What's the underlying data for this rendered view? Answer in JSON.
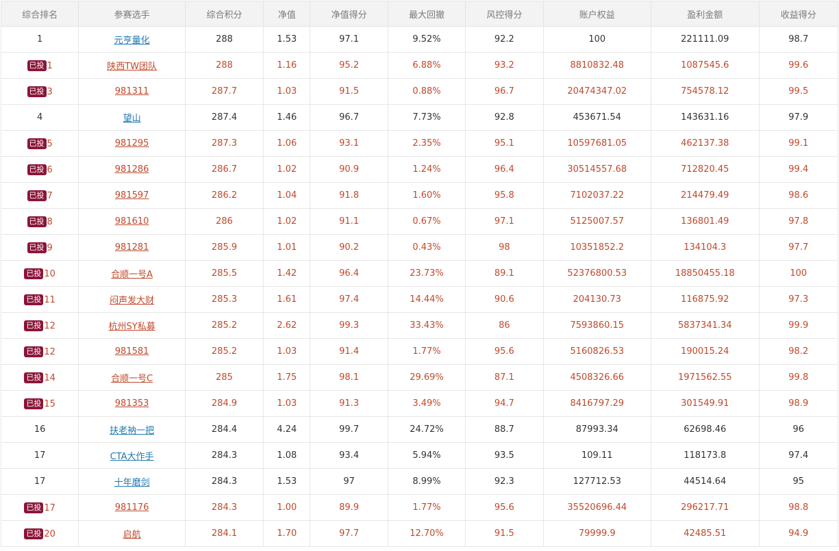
{
  "columns": [
    "综合排名",
    "参赛选手",
    "综合积分",
    "净值",
    "净值得分",
    "最大回撤",
    "风控得分",
    "账户权益",
    "盈利金额",
    "收益得分"
  ],
  "badge_label": "已投",
  "colors": {
    "invested_text": "#c0492b",
    "link_blue": "#1f79b0",
    "badge_bg": "#8b1538",
    "header_bg": "#f3f3f3"
  },
  "rows": [
    {
      "invested": false,
      "rank": "1",
      "name": "元亨量化",
      "score": "288",
      "nav": "1.53",
      "nav_score": "97.1",
      "max_dd": "9.52%",
      "risk_score": "92.2",
      "equity": "100",
      "profit": "221111.09",
      "return_score": "98.7"
    },
    {
      "invested": true,
      "rank": "1",
      "name": "陕西TW团队",
      "score": "288",
      "nav": "1.16",
      "nav_score": "95.2",
      "max_dd": "6.88%",
      "risk_score": "93.2",
      "equity": "8810832.48",
      "profit": "1087545.6",
      "return_score": "99.6"
    },
    {
      "invested": true,
      "rank": "3",
      "name": "981311",
      "score": "287.7",
      "nav": "1.03",
      "nav_score": "91.5",
      "max_dd": "0.88%",
      "risk_score": "96.7",
      "equity": "20474347.02",
      "profit": "754578.12",
      "return_score": "99.5"
    },
    {
      "invested": false,
      "rank": "4",
      "name": "望山",
      "score": "287.4",
      "nav": "1.46",
      "nav_score": "96.7",
      "max_dd": "7.73%",
      "risk_score": "92.8",
      "equity": "453671.54",
      "profit": "143631.16",
      "return_score": "97.9"
    },
    {
      "invested": true,
      "rank": "5",
      "name": "981295",
      "score": "287.3",
      "nav": "1.06",
      "nav_score": "93.1",
      "max_dd": "2.35%",
      "risk_score": "95.1",
      "equity": "10597681.05",
      "profit": "462137.38",
      "return_score": "99.1"
    },
    {
      "invested": true,
      "rank": "6",
      "name": "981286",
      "score": "286.7",
      "nav": "1.02",
      "nav_score": "90.9",
      "max_dd": "1.24%",
      "risk_score": "96.4",
      "equity": "30514557.68",
      "profit": "712820.45",
      "return_score": "99.4"
    },
    {
      "invested": true,
      "rank": "7",
      "name": "981597",
      "score": "286.2",
      "nav": "1.04",
      "nav_score": "91.8",
      "max_dd": "1.60%",
      "risk_score": "95.8",
      "equity": "7102037.22",
      "profit": "214479.49",
      "return_score": "98.6"
    },
    {
      "invested": true,
      "rank": "8",
      "name": "981610",
      "score": "286",
      "nav": "1.02",
      "nav_score": "91.1",
      "max_dd": "0.67%",
      "risk_score": "97.1",
      "equity": "5125007.57",
      "profit": "136801.49",
      "return_score": "97.8"
    },
    {
      "invested": true,
      "rank": "9",
      "name": "981281",
      "score": "285.9",
      "nav": "1.01",
      "nav_score": "90.2",
      "max_dd": "0.43%",
      "risk_score": "98",
      "equity": "10351852.2",
      "profit": "134104.3",
      "return_score": "97.7"
    },
    {
      "invested": true,
      "rank": "10",
      "name": "合顺一号A",
      "score": "285.5",
      "nav": "1.42",
      "nav_score": "96.4",
      "max_dd": "23.73%",
      "risk_score": "89.1",
      "equity": "52376800.53",
      "profit": "18850455.18",
      "return_score": "100"
    },
    {
      "invested": true,
      "rank": "11",
      "name": "闷声发大财",
      "score": "285.3",
      "nav": "1.61",
      "nav_score": "97.4",
      "max_dd": "14.44%",
      "risk_score": "90.6",
      "equity": "204130.73",
      "profit": "116875.92",
      "return_score": "97.3"
    },
    {
      "invested": true,
      "rank": "12",
      "name": "杭州SY私募",
      "score": "285.2",
      "nav": "2.62",
      "nav_score": "99.3",
      "max_dd": "33.43%",
      "risk_score": "86",
      "equity": "7593860.15",
      "profit": "5837341.34",
      "return_score": "99.9"
    },
    {
      "invested": true,
      "rank": "12",
      "name": "981581",
      "score": "285.2",
      "nav": "1.03",
      "nav_score": "91.4",
      "max_dd": "1.77%",
      "risk_score": "95.6",
      "equity": "5160826.53",
      "profit": "190015.24",
      "return_score": "98.2"
    },
    {
      "invested": true,
      "rank": "14",
      "name": "合顺一号C",
      "score": "285",
      "nav": "1.75",
      "nav_score": "98.1",
      "max_dd": "29.69%",
      "risk_score": "87.1",
      "equity": "4508326.66",
      "profit": "1971562.55",
      "return_score": "99.8"
    },
    {
      "invested": true,
      "rank": "15",
      "name": "981353",
      "score": "284.9",
      "nav": "1.03",
      "nav_score": "91.3",
      "max_dd": "3.49%",
      "risk_score": "94.7",
      "equity": "8416797.29",
      "profit": "301549.91",
      "return_score": "98.9"
    },
    {
      "invested": false,
      "rank": "16",
      "name": "扶老衲一把",
      "score": "284.4",
      "nav": "4.24",
      "nav_score": "99.7",
      "max_dd": "24.72%",
      "risk_score": "88.7",
      "equity": "87993.34",
      "profit": "62698.46",
      "return_score": "96"
    },
    {
      "invested": false,
      "rank": "17",
      "name": "CTA大作手",
      "score": "284.3",
      "nav": "1.08",
      "nav_score": "93.4",
      "max_dd": "5.94%",
      "risk_score": "93.5",
      "equity": "109.11",
      "profit": "118173.8",
      "return_score": "97.4"
    },
    {
      "invested": false,
      "rank": "17",
      "name": "十年磨剑",
      "score": "284.3",
      "nav": "1.53",
      "nav_score": "97",
      "max_dd": "8.99%",
      "risk_score": "92.3",
      "equity": "127712.53",
      "profit": "44514.64",
      "return_score": "95"
    },
    {
      "invested": true,
      "rank": "17",
      "name": "981176",
      "score": "284.3",
      "nav": "1.00",
      "nav_score": "89.9",
      "max_dd": "1.77%",
      "risk_score": "95.6",
      "equity": "35520696.44",
      "profit": "296217.71",
      "return_score": "98.8"
    },
    {
      "invested": true,
      "rank": "20",
      "name": "启航",
      "score": "284.1",
      "nav": "1.70",
      "nav_score": "97.7",
      "max_dd": "12.70%",
      "risk_score": "91.5",
      "equity": "79999.9",
      "profit": "42485.51",
      "return_score": "94.9"
    }
  ]
}
